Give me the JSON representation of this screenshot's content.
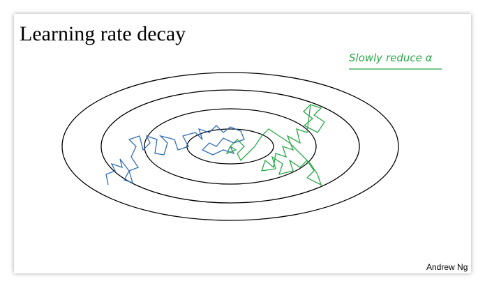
{
  "slide": {
    "title": "Learning rate decay",
    "annotation": "Slowly reduce α",
    "author": "Andrew Ng"
  }
}
